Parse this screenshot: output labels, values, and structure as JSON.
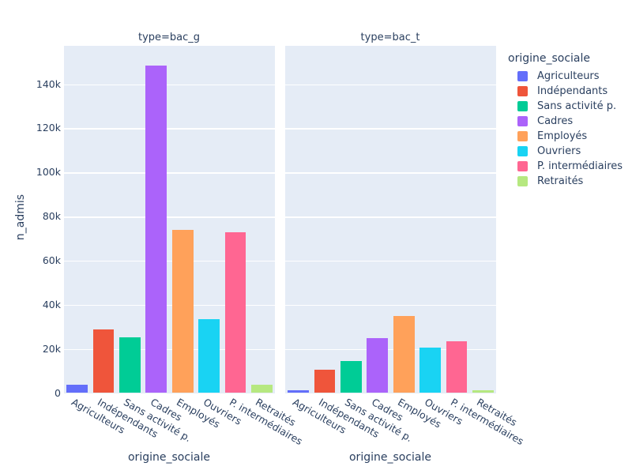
{
  "chart_data": {
    "type": "bar",
    "facets": [
      {
        "title": "type=bac_g",
        "values": [
          3800,
          29000,
          25100,
          148500,
          74000,
          33400,
          73000,
          3800
        ]
      },
      {
        "title": "type=bac_t",
        "values": [
          1100,
          10500,
          14600,
          25000,
          35000,
          20500,
          23500,
          1400
        ]
      }
    ],
    "categories": [
      "Agriculteurs",
      "Indépendants",
      "Sans activité p.",
      "Cadres",
      "Employés",
      "Ouvriers",
      "P. intermédiaires",
      "Retraités"
    ],
    "colors": [
      "#636EFA",
      "#EF553B",
      "#00CC96",
      "#AB63FA",
      "#FFA15A",
      "#19D3F3",
      "#FF6692",
      "#B6E880"
    ],
    "xlabel": "origine_sociale",
    "ylabel": "n_admis",
    "yticks": {
      "values": [
        0,
        20000,
        40000,
        60000,
        80000,
        100000,
        120000,
        140000
      ],
      "labels": [
        "0",
        "20k",
        "40k",
        "60k",
        "80k",
        "100k",
        "120k",
        "140k"
      ]
    },
    "ylim": [
      0,
      157400
    ],
    "legend": {
      "title": "origine_sociale"
    },
    "plot_bgcolor": "#E5ECF6",
    "grid_color": "#FFFFFF",
    "font_color": "#2a3f5f"
  }
}
